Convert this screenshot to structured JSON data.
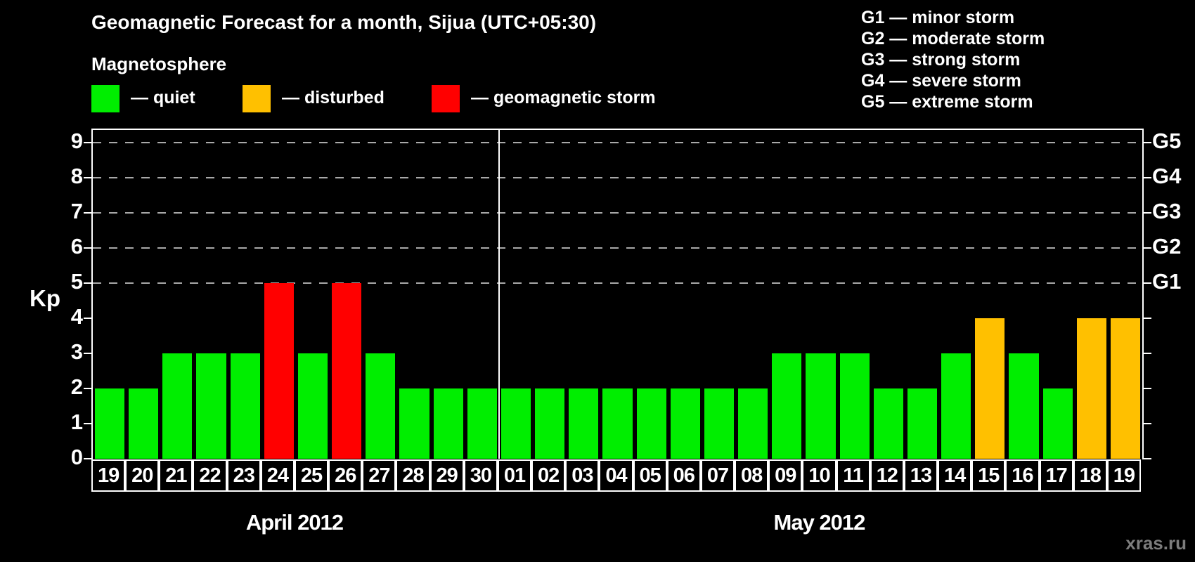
{
  "title": "Geomagnetic Forecast for a month, Sijua (UTC+05:30)",
  "subtitle": "Magnetosphere",
  "legend": {
    "quiet_label": "— quiet",
    "disturbed_label": "— disturbed",
    "storm_label": "— geomagnetic storm"
  },
  "g_scale_legend": [
    "G1 — minor storm",
    "G2 — moderate storm",
    "G3 — strong storm",
    "G4 — severe storm",
    "G5 — extreme storm"
  ],
  "watermark": "xras.ru",
  "colors": {
    "quiet": "#00ee00",
    "disturbed": "#ffc000",
    "storm": "#ff0000",
    "grid": "#a9a9a9",
    "axis": "#ffffff",
    "background": "#000000"
  },
  "chart_data": {
    "type": "bar",
    "ylabel": "Kp",
    "ylim": [
      0,
      9.4
    ],
    "yticks": [
      0,
      1,
      2,
      3,
      4,
      5,
      6,
      7,
      8,
      9
    ],
    "gridlines_at": [
      5,
      6,
      7,
      8,
      9
    ],
    "grid": "dashed horizontal at Kp 5-9 only",
    "legend_position": "top",
    "right_axis_labels": [
      {
        "kp": 5,
        "label": "G1"
      },
      {
        "kp": 6,
        "label": "G2"
      },
      {
        "kp": 7,
        "label": "G3"
      },
      {
        "kp": 8,
        "label": "G4"
      },
      {
        "kp": 9,
        "label": "G5"
      }
    ],
    "thresholds": {
      "disturbed_min": 4,
      "storm_min": 5
    },
    "months": [
      {
        "label": "April 2012",
        "days": [
          "19",
          "20",
          "21",
          "22",
          "23",
          "24",
          "25",
          "26",
          "27",
          "28",
          "29",
          "30"
        ],
        "values": [
          2,
          2,
          3,
          3,
          3,
          5,
          3,
          5,
          3,
          2,
          2,
          2
        ]
      },
      {
        "label": "May 2012",
        "days": [
          "01",
          "02",
          "03",
          "04",
          "05",
          "06",
          "07",
          "08",
          "09",
          "10",
          "11",
          "12",
          "13",
          "14",
          "15",
          "16",
          "17",
          "18",
          "19"
        ],
        "values": [
          2,
          2,
          2,
          2,
          2,
          2,
          2,
          2,
          3,
          3,
          3,
          2,
          2,
          3,
          4,
          3,
          2,
          4,
          4
        ]
      }
    ]
  }
}
